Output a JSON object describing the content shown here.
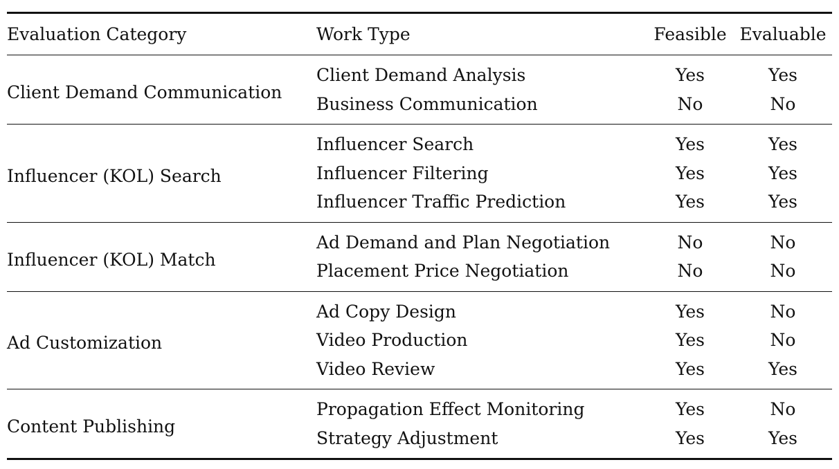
{
  "table": {
    "headers": {
      "category": "Evaluation Category",
      "work_type": "Work Type",
      "feasible": "Feasible",
      "evaluable": "Evaluable"
    },
    "groups": [
      {
        "category": "Client Demand Communication",
        "rows": [
          {
            "work_type": "Client Demand Analysis",
            "feasible": "Yes",
            "evaluable": "Yes"
          },
          {
            "work_type": "Business Communication",
            "feasible": "No",
            "evaluable": "No"
          }
        ]
      },
      {
        "category": "Influencer (KOL) Search",
        "rows": [
          {
            "work_type": "Influencer Search",
            "feasible": "Yes",
            "evaluable": "Yes"
          },
          {
            "work_type": "Influencer Filtering",
            "feasible": "Yes",
            "evaluable": "Yes"
          },
          {
            "work_type": "Influencer Traffic Prediction",
            "feasible": "Yes",
            "evaluable": "Yes"
          }
        ]
      },
      {
        "category": "Influencer (KOL) Match",
        "rows": [
          {
            "work_type": "Ad Demand and Plan Negotiation",
            "feasible": "No",
            "evaluable": "No"
          },
          {
            "work_type": "Placement Price Negotiation",
            "feasible": "No",
            "evaluable": "No"
          }
        ]
      },
      {
        "category": "Ad Customization",
        "rows": [
          {
            "work_type": "Ad Copy Design",
            "feasible": "Yes",
            "evaluable": "No"
          },
          {
            "work_type": "Video Production",
            "feasible": "Yes",
            "evaluable": "No"
          },
          {
            "work_type": "Video Review",
            "feasible": "Yes",
            "evaluable": "Yes"
          }
        ]
      },
      {
        "category": "Content Publishing",
        "rows": [
          {
            "work_type": "Propagation Effect Monitoring",
            "feasible": "Yes",
            "evaluable": "No"
          },
          {
            "work_type": "Strategy Adjustment",
            "feasible": "Yes",
            "evaluable": "Yes"
          }
        ]
      }
    ]
  }
}
